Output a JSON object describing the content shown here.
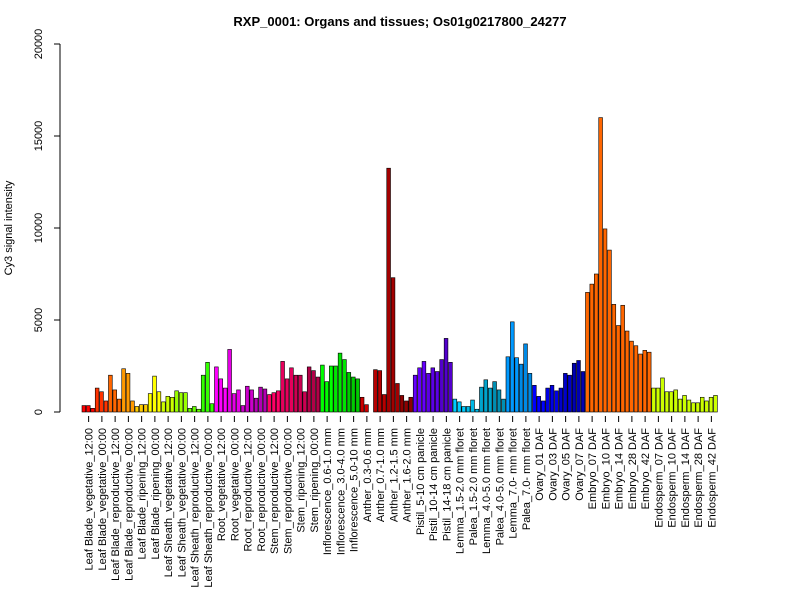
{
  "chart_data": {
    "type": "bar",
    "title": "RXP_0001: Organs and tissues; Os01g0217800_24277",
    "ylabel": "Cy3 signal intensity",
    "xlabel": "",
    "ylim": [
      0,
      20000
    ],
    "yticks": [
      0,
      5000,
      10000,
      15000,
      20000
    ],
    "grid": false,
    "legend": "none",
    "groups": [
      {
        "color": "#FF0000",
        "values": [
          350,
          350,
          200
        ]
      },
      {
        "color": "#FF3300",
        "values": [
          1300,
          1100,
          600
        ]
      },
      {
        "color": "#FF6600",
        "values": [
          2000,
          1200,
          700
        ]
      },
      {
        "color": "#FF9900",
        "values": [
          2350,
          2100,
          600
        ]
      },
      {
        "color": "#FFCC00",
        "values": [
          300,
          400,
          400
        ]
      },
      {
        "color": "#FFFF00",
        "values": [
          1000,
          1950,
          1100
        ]
      },
      {
        "color": "#CCFF00",
        "values": [
          550,
          850,
          800
        ]
      },
      {
        "color": "#99FF00",
        "values": [
          1150,
          1050,
          1050
        ]
      },
      {
        "color": "#66FF00",
        "values": [
          200,
          300,
          150
        ]
      },
      {
        "color": "#33FF00",
        "values": [
          2000,
          2700,
          450
        ]
      },
      {
        "color": "#FF00FF",
        "values": [
          2450,
          1800,
          1300
        ]
      },
      {
        "color": "#E600E6",
        "values": [
          3400,
          1000,
          1200
        ]
      },
      {
        "color": "#CC00CC",
        "values": [
          350,
          1400,
          1200
        ]
      },
      {
        "color": "#B300B3",
        "values": [
          750,
          1350,
          1250
        ]
      },
      {
        "color": "#FF0066",
        "values": [
          950,
          1050,
          1150
        ]
      },
      {
        "color": "#E6005C",
        "values": [
          2750,
          1800,
          2400
        ]
      },
      {
        "color": "#CC0052",
        "values": [
          2000,
          2000,
          1100
        ]
      },
      {
        "color": "#B30047",
        "values": [
          2450,
          2250,
          1900
        ]
      },
      {
        "color": "#00FF00",
        "values": [
          2550,
          1650,
          2500
        ]
      },
      {
        "color": "#00E600",
        "values": [
          2500,
          3200,
          2850
        ]
      },
      {
        "color": "#00CC00",
        "values": [
          2150,
          1900,
          1800
        ]
      },
      {
        "color": "#CC0000",
        "values": [
          800,
          400,
          0
        ]
      },
      {
        "color": "#B80000",
        "values": [
          2300,
          2250,
          950
        ]
      },
      {
        "color": "#A30000",
        "values": [
          13250,
          7300,
          1550
        ]
      },
      {
        "color": "#8F0000",
        "values": [
          900,
          600,
          800
        ]
      },
      {
        "color": "#6600FF",
        "values": [
          2000,
          2400,
          2750
        ]
      },
      {
        "color": "#5C00E6",
        "values": [
          2100,
          2400,
          2200
        ]
      },
      {
        "color": "#5200CC",
        "values": [
          2850,
          4000,
          2700
        ]
      },
      {
        "color": "#00CCFF",
        "values": [
          700,
          550,
          300
        ]
      },
      {
        "color": "#00B8E6",
        "values": [
          300,
          650,
          150
        ]
      },
      {
        "color": "#00A3CC",
        "values": [
          1350,
          1750,
          1300
        ]
      },
      {
        "color": "#008FB3",
        "values": [
          1650,
          1200,
          700
        ]
      },
      {
        "color": "#0099FF",
        "values": [
          3000,
          4900,
          2950
        ]
      },
      {
        "color": "#008AE6",
        "values": [
          2600,
          3700,
          2100
        ]
      },
      {
        "color": "#0000FF",
        "values": [
          1450,
          850,
          600
        ]
      },
      {
        "color": "#0000E6",
        "values": [
          1300,
          1450,
          1150
        ]
      },
      {
        "color": "#0000CC",
        "values": [
          1300,
          2100,
          2000
        ]
      },
      {
        "color": "#0000B3",
        "values": [
          2650,
          2800,
          2200
        ]
      },
      {
        "color": "#FF6600",
        "values": [
          6500,
          6950,
          7500
        ]
      },
      {
        "color": "#FF6600",
        "values": [
          16000,
          9950,
          8800
        ]
      },
      {
        "color": "#FF6600",
        "values": [
          5850,
          4700,
          5800
        ]
      },
      {
        "color": "#FF6600",
        "values": [
          4400,
          3850,
          3600
        ]
      },
      {
        "color": "#FF6600",
        "values": [
          3150,
          3350,
          3250
        ]
      },
      {
        "color": "#CCFF00",
        "values": [
          1300,
          1300,
          1850
        ]
      },
      {
        "color": "#CCFF00",
        "values": [
          1100,
          1100,
          1200
        ]
      },
      {
        "color": "#CCFF00",
        "values": [
          700,
          900,
          650
        ]
      },
      {
        "color": "#CCFF00",
        "values": [
          500,
          500,
          800
        ]
      },
      {
        "color": "#CCFF00",
        "values": [
          600,
          800,
          900
        ]
      }
    ],
    "tick_labels": [
      "Leaf Blade_vegetative_12:00",
      "Leaf Blade_vegetative_00:00",
      "Leaf Blade_reproductive_12:00",
      "Leaf Blade_reproductive_00:00",
      "Leaf Blade_ripening_12:00",
      "Leaf Blade_ripening_00:00",
      "Leaf Sheath_vegetative_12:00",
      "Leaf Sheath_vegetative_00:00",
      "Leaf Sheath_reproductive_12:00",
      "Leaf Sheath_reproductive_00:00",
      "Root_vegetative_12:00",
      "Root_vegetative_00:00",
      "Root_reproductive_12:00",
      "Root_reproductive_00:00",
      "Stem_reproductive_12:00",
      "Stem_reproductive_00:00",
      "Stem_ripening_12:00",
      "Stem_ripening_00:00",
      "Inflorescence_0.6-1.0 mm",
      "Inflorescence_3.0-4.0 mm",
      "Inflorescence_5.0-10 mm",
      "Anther_0.3-0.6 mm",
      "Anther_0.7-1.0 mm",
      "Anther_1.2-1.5 mm",
      "Anther_1.6-2.0 mm",
      "Pistil_5-10 cm panicle",
      "Pistil_10-14 cm panicle",
      "Pistil_14-18 cm panicle",
      "Lemma_1.5-2.0 mm floret",
      "Palea_1.5-2.0 mm floret",
      "Lemma_4.0-5.0 mm floret",
      "Palea_4.0-5.0 mm floret",
      "Lemma_7.0- mm floret",
      "Palea_7.0- mm floret",
      "Ovary_01 DAF",
      "Ovary_03 DAF",
      "Ovary_05 DAF",
      "Ovary_07 DAF",
      "Embryo_07 DAF",
      "Embryo_10 DAF",
      "Embryo_14 DAF",
      "Embryo_28 DAF",
      "Embryo_42 DAF",
      "Endosperm_07 DAF",
      "Endosperm_10 DAF",
      "Endosperm_14 DAF",
      "Endosperm_28 DAF",
      "Endosperm_42 DAF"
    ]
  }
}
